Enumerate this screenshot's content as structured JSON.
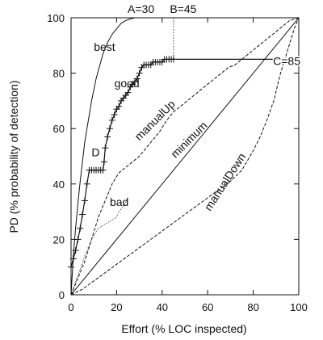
{
  "chart_data": {
    "type": "line",
    "xlabel": "Effort (% LOC  inspected)",
    "ylabel": "PD (% probability of detection)",
    "xlim": [
      0,
      100
    ],
    "ylim": [
      0,
      100
    ],
    "x_ticks": [
      "0",
      "20",
      "40",
      "60",
      "80",
      "100"
    ],
    "y_ticks": [
      "0",
      "20",
      "40",
      "60",
      "80",
      "100"
    ],
    "grid": false,
    "legend": "none",
    "annotations": [
      {
        "text": "A=30",
        "x": 30,
        "y": 100
      },
      {
        "text": "B=45",
        "x": 45,
        "y": 100
      },
      {
        "text": "C=85",
        "x": 100,
        "y": 85
      },
      {
        "text": "best",
        "x": 10,
        "y": 88
      },
      {
        "text": "good",
        "x": 19,
        "y": 75
      },
      {
        "text": "D",
        "x": 9,
        "y": 50
      },
      {
        "text": "bad",
        "x": 17,
        "y": 32
      },
      {
        "text": "manualUp",
        "x": 38,
        "y": 62
      },
      {
        "text": "minimum",
        "x": 53,
        "y": 55
      },
      {
        "text": "manualDown",
        "x": 69,
        "y": 40
      }
    ],
    "reference_lines": [
      {
        "from": [
          45,
          100
        ],
        "to": [
          45,
          85
        ]
      },
      {
        "from": [
          45,
          85
        ],
        "to": [
          100,
          85
        ]
      }
    ],
    "series": [
      {
        "style": "solid",
        "x": [
          0,
          1,
          2,
          3,
          4,
          5,
          6,
          7,
          8,
          9,
          10,
          11,
          12,
          13,
          14,
          15,
          16,
          18,
          20,
          22,
          24,
          26,
          28,
          30,
          100
        ],
        "y": [
          0,
          14,
          24,
          33,
          41,
          48,
          55,
          60,
          65,
          70,
          74,
          78,
          81,
          84,
          87,
          89,
          91,
          94,
          96,
          98,
          99,
          99.6,
          100,
          100,
          100
        ]
      },
      {
        "style": "solid-markers",
        "x": [
          0,
          1,
          2,
          3,
          4,
          5,
          6,
          7,
          8,
          9,
          10,
          11,
          12,
          13,
          14,
          14.5,
          15,
          16,
          17,
          18,
          19,
          20,
          21,
          22,
          23,
          24,
          25,
          26,
          27,
          28,
          29,
          30,
          31,
          32,
          33,
          34,
          35,
          36,
          37,
          38,
          39,
          40,
          41,
          42,
          43,
          44,
          45,
          100
        ],
        "y": [
          10,
          13,
          16,
          20,
          24,
          29,
          34,
          40,
          45,
          45,
          45,
          45,
          45,
          45,
          45,
          48,
          53,
          57,
          60,
          63,
          65,
          67,
          68,
          70,
          71,
          72,
          73,
          75,
          76,
          77,
          78,
          80,
          82,
          83,
          83,
          83,
          83,
          84,
          84,
          84,
          84,
          84,
          85,
          85,
          85,
          85,
          85,
          85
        ]
      },
      {
        "style": "solid",
        "x": [
          0,
          100
        ],
        "y": [
          0,
          100
        ]
      },
      {
        "style": "dashed",
        "x": [
          0,
          3,
          6,
          9,
          12,
          15,
          18,
          21,
          24,
          27,
          30,
          33,
          36,
          39,
          42,
          45,
          48,
          51,
          54,
          57,
          60,
          63,
          66,
          69,
          72,
          75,
          78,
          81,
          84,
          87,
          90,
          93,
          96,
          100
        ],
        "y": [
          0,
          6,
          12,
          20,
          28,
          34,
          40,
          44,
          46,
          48,
          50,
          53,
          56,
          59,
          63,
          66,
          68,
          70,
          72,
          74,
          76,
          78,
          80,
          82,
          83,
          85,
          87,
          89,
          91,
          93,
          95,
          97,
          99,
          100
        ]
      },
      {
        "style": "dashed",
        "x": [
          0,
          5,
          10,
          15,
          20,
          25,
          30,
          35,
          40,
          45,
          50,
          55,
          60,
          65,
          70,
          75,
          80,
          83,
          86,
          89,
          92,
          95,
          98,
          100
        ],
        "y": [
          0,
          2,
          5,
          8,
          11,
          14,
          17,
          20,
          23,
          26,
          29,
          32,
          35,
          38,
          41,
          45,
          52,
          57,
          63,
          70,
          80,
          88,
          96,
          100
        ]
      },
      {
        "style": "dotted",
        "x": [
          0,
          3,
          6,
          9,
          12,
          14,
          16,
          18,
          20,
          21,
          22,
          23,
          25
        ],
        "y": [
          0,
          7,
          14,
          20,
          24,
          25,
          26,
          27,
          28,
          30,
          31,
          32,
          35
        ]
      }
    ]
  }
}
